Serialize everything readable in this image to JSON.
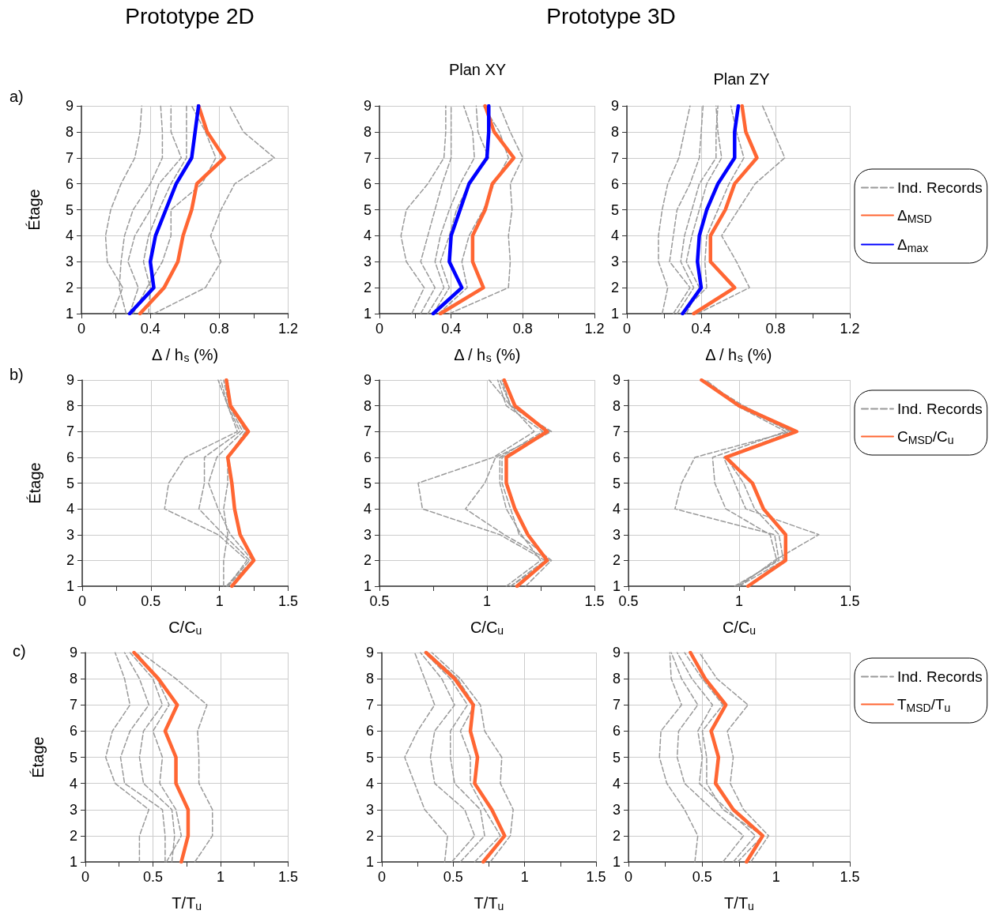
{
  "chart_data": [
    {
      "type": "line",
      "title": "Prototype 2D",
      "annotations": [
        "a)"
      ],
      "xlabel": "Δ / h$_{s}$ (%)",
      "ylabel": "Étage",
      "xlim": [
        0,
        1.2
      ],
      "xticks": [
        0,
        0.4,
        0.8,
        1.2
      ],
      "ylim": [
        1,
        9
      ],
      "yticks": [
        1,
        2,
        3,
        4,
        5,
        6,
        7,
        8,
        9
      ],
      "grid": true,
      "marker": "none",
      "series": [
        {
          "color": "#999999",
          "line_style": "dashed",
          "x": [
            0.42,
            0.72,
            0.81,
            0.75,
            0.81,
            0.89,
            1.12,
            0.94,
            0.86
          ],
          "values": [
            1,
            2,
            3,
            4,
            5,
            6,
            7,
            8,
            9
          ]
        },
        {
          "color": "#999999",
          "line_style": "dashed",
          "x": [
            0.18,
            0.24,
            0.15,
            0.14,
            0.17,
            0.23,
            0.31,
            0.34,
            0.35
          ],
          "values": [
            1,
            2,
            3,
            4,
            5,
            6,
            7,
            8,
            9
          ]
        },
        {
          "color": "#999999",
          "line_style": "dashed",
          "x": [
            0.26,
            0.22,
            0.23,
            0.25,
            0.3,
            0.4,
            0.47,
            0.47,
            0.46
          ],
          "values": [
            1,
            2,
            3,
            4,
            5,
            6,
            7,
            8,
            9
          ]
        },
        {
          "color": "#999999",
          "line_style": "dashed",
          "x": [
            0.3,
            0.38,
            0.47,
            0.52,
            0.52,
            0.7,
            0.78,
            0.72,
            0.64
          ],
          "values": [
            1,
            2,
            3,
            4,
            5,
            6,
            7,
            8,
            9
          ]
        },
        {
          "color": "#999999",
          "line_style": "dashed",
          "x": [
            0.28,
            0.33,
            0.27,
            0.31,
            0.4,
            0.45,
            0.58,
            0.52,
            0.52
          ],
          "values": [
            1,
            2,
            3,
            4,
            5,
            6,
            7,
            8,
            9
          ]
        },
        {
          "color": "#999999",
          "line_style": "dashed",
          "x": [
            0.39,
            0.4,
            0.36,
            0.39,
            0.45,
            0.52,
            0.61,
            0.61,
            0.61
          ],
          "values": [
            1,
            2,
            3,
            4,
            5,
            6,
            7,
            8,
            9
          ]
        },
        {
          "color": "#ff6633",
          "line_style": "solid",
          "x": [
            0.34,
            0.48,
            0.56,
            0.59,
            0.64,
            0.67,
            0.83,
            0.73,
            0.68
          ],
          "values": [
            1,
            2,
            3,
            4,
            5,
            6,
            7,
            8,
            9
          ]
        },
        {
          "color": "#0000ff",
          "line_style": "solid",
          "x": [
            0.28,
            0.42,
            0.4,
            0.43,
            0.49,
            0.55,
            0.64,
            0.66,
            0.68
          ],
          "values": [
            1,
            2,
            3,
            4,
            5,
            6,
            7,
            8,
            9
          ]
        }
      ]
    },
    {
      "type": "line",
      "title": "Prototype 3D",
      "subtitle": "Plan XY",
      "xlabel": "Δ / h$_{s}$ (%)",
      "xlim": [
        0,
        1.2
      ],
      "xticks": [
        0,
        0.4,
        0.8,
        1.2
      ],
      "ylim": [
        1,
        9
      ],
      "yticks": [
        1,
        2,
        3,
        4,
        5,
        6,
        7,
        8,
        9
      ],
      "grid": true,
      "marker": "none",
      "series": [
        {
          "color": "#999999",
          "line_style": "dashed",
          "x": [
            0.39,
            0.72,
            0.73,
            0.72,
            0.74,
            0.73,
            0.8,
            0.73,
            0.67
          ],
          "values": [
            1,
            2,
            3,
            4,
            5,
            6,
            7,
            8,
            9
          ]
        },
        {
          "color": "#999999",
          "line_style": "dashed",
          "x": [
            0.18,
            0.25,
            0.15,
            0.12,
            0.15,
            0.27,
            0.36,
            0.37,
            0.37
          ],
          "values": [
            1,
            2,
            3,
            4,
            5,
            6,
            7,
            8,
            9
          ]
        },
        {
          "color": "#999999",
          "line_style": "dashed",
          "x": [
            0.23,
            0.31,
            0.23,
            0.27,
            0.31,
            0.35,
            0.4,
            0.4,
            0.4
          ],
          "values": [
            1,
            2,
            3,
            4,
            5,
            6,
            7,
            8,
            9
          ]
        },
        {
          "color": "#999999",
          "line_style": "dashed",
          "x": [
            0.27,
            0.36,
            0.31,
            0.34,
            0.39,
            0.45,
            0.53,
            0.52,
            0.47
          ],
          "values": [
            1,
            2,
            3,
            4,
            5,
            6,
            7,
            8,
            9
          ]
        },
        {
          "color": "#999999",
          "line_style": "dashed",
          "x": [
            0.33,
            0.49,
            0.46,
            0.5,
            0.58,
            0.64,
            0.72,
            0.67,
            0.58
          ],
          "values": [
            1,
            2,
            3,
            4,
            5,
            6,
            7,
            8,
            9
          ]
        },
        {
          "color": "#999999",
          "line_style": "dashed",
          "x": [
            0.3,
            0.39,
            0.34,
            0.39,
            0.43,
            0.5,
            0.61,
            0.55,
            0.54
          ],
          "values": [
            1,
            2,
            3,
            4,
            5,
            6,
            7,
            8,
            9
          ]
        },
        {
          "color": "#ff6633",
          "line_style": "solid",
          "x": [
            0.34,
            0.58,
            0.52,
            0.52,
            0.59,
            0.63,
            0.75,
            0.64,
            0.59
          ],
          "values": [
            1,
            2,
            3,
            4,
            5,
            6,
            7,
            8,
            9
          ]
        },
        {
          "color": "#0000ff",
          "line_style": "solid",
          "x": [
            0.3,
            0.46,
            0.39,
            0.4,
            0.45,
            0.5,
            0.6,
            0.61,
            0.61
          ],
          "values": [
            1,
            2,
            3,
            4,
            5,
            6,
            7,
            8,
            9
          ]
        }
      ]
    },
    {
      "type": "line",
      "title": "Plan ZY",
      "xlabel": "Δ / h$_{s}$ (%)",
      "xlim": [
        0,
        1.2
      ],
      "xticks": [
        0,
        0.4,
        0.8,
        1.2
      ],
      "ylim": [
        1,
        9
      ],
      "yticks": [
        1,
        2,
        3,
        4,
        5,
        6,
        7,
        8,
        9
      ],
      "grid": true,
      "marker": "none",
      "legend": "right",
      "series": [
        {
          "name": "Ind. Records",
          "color": "#999999",
          "line_style": "dashed",
          "x": [
            0.38,
            0.66,
            0.59,
            0.51,
            0.6,
            0.69,
            0.85,
            0.79,
            0.73
          ],
          "values": [
            1,
            2,
            3,
            4,
            5,
            6,
            7,
            8,
            9
          ]
        },
        {
          "color": "#999999",
          "line_style": "dashed",
          "x": [
            0.19,
            0.22,
            0.17,
            0.17,
            0.19,
            0.22,
            0.28,
            0.31,
            0.34
          ],
          "values": [
            1,
            2,
            3,
            4,
            5,
            6,
            7,
            8,
            9
          ]
        },
        {
          "color": "#999999",
          "line_style": "dashed",
          "x": [
            0.25,
            0.34,
            0.23,
            0.25,
            0.27,
            0.34,
            0.39,
            0.4,
            0.41
          ],
          "values": [
            1,
            2,
            3,
            4,
            5,
            6,
            7,
            8,
            9
          ]
        },
        {
          "color": "#999999",
          "line_style": "dashed",
          "x": [
            0.32,
            0.39,
            0.32,
            0.35,
            0.39,
            0.43,
            0.51,
            0.49,
            0.48
          ],
          "values": [
            1,
            2,
            3,
            4,
            5,
            6,
            7,
            8,
            9
          ]
        },
        {
          "color": "#999999",
          "line_style": "dashed",
          "x": [
            0.29,
            0.43,
            0.42,
            0.43,
            0.49,
            0.55,
            0.63,
            0.59,
            0.56
          ],
          "values": [
            1,
            2,
            3,
            4,
            5,
            6,
            7,
            8,
            9
          ]
        },
        {
          "color": "#999999",
          "line_style": "dashed",
          "x": [
            0.27,
            0.36,
            0.29,
            0.31,
            0.35,
            0.39,
            0.48,
            0.48,
            0.49
          ],
          "values": [
            1,
            2,
            3,
            4,
            5,
            6,
            7,
            8,
            9
          ]
        },
        {
          "name": "Δ$_{MSD}$",
          "color": "#ff6633",
          "line_style": "solid",
          "x": [
            0.36,
            0.58,
            0.45,
            0.45,
            0.53,
            0.58,
            0.7,
            0.64,
            0.62
          ],
          "values": [
            1,
            2,
            3,
            4,
            5,
            6,
            7,
            8,
            9
          ]
        },
        {
          "name": "Δ$_{max}$",
          "color": "#0000ff",
          "line_style": "solid",
          "x": [
            0.3,
            0.4,
            0.38,
            0.39,
            0.43,
            0.49,
            0.58,
            0.58,
            0.6
          ],
          "values": [
            1,
            2,
            3,
            4,
            5,
            6,
            7,
            8,
            9
          ]
        }
      ]
    },
    {
      "type": "line",
      "annotations": [
        "b)"
      ],
      "xlabel": "C/C$_{u}$",
      "ylabel": "Étage",
      "xlim": [
        0,
        1.5
      ],
      "xticks": [
        0,
        0.5,
        1,
        1.5
      ],
      "ylim": [
        1,
        9
      ],
      "yticks": [
        1,
        2,
        3,
        4,
        5,
        6,
        7,
        8,
        9
      ],
      "grid": true,
      "marker": "none",
      "series": [
        {
          "color": "#999999",
          "line_style": "dashed",
          "x": [
            1.06,
            1.2,
            0.99,
            0.6,
            0.63,
            0.75,
            1.13,
            1.06,
            1.01
          ],
          "values": [
            1,
            2,
            3,
            4,
            5,
            6,
            7,
            8,
            9
          ]
        },
        {
          "color": "#999999",
          "line_style": "dashed",
          "x": [
            1.05,
            1.22,
            1.03,
            0.85,
            0.89,
            0.89,
            1.15,
            1.06,
            0.99
          ],
          "values": [
            1,
            2,
            3,
            4,
            5,
            6,
            7,
            8,
            9
          ]
        },
        {
          "color": "#999999",
          "line_style": "dashed",
          "x": [
            1.06,
            1.24,
            1.08,
            0.99,
            0.92,
            0.98,
            1.17,
            1.07,
            1.03
          ],
          "values": [
            1,
            2,
            3,
            4,
            5,
            6,
            7,
            8,
            9
          ]
        },
        {
          "color": "#999999",
          "line_style": "dashed",
          "x": [
            1.03,
            1.03,
            1.06,
            1.03,
            1.06,
            1.06,
            1.19,
            1.08,
            1.06
          ],
          "values": [
            1,
            2,
            3,
            4,
            5,
            6,
            7,
            8,
            9
          ]
        },
        {
          "color": "#ff6633",
          "line_style": "solid",
          "x": [
            1.09,
            1.25,
            1.15,
            1.11,
            1.09,
            1.06,
            1.21,
            1.08,
            1.05
          ],
          "values": [
            1,
            2,
            3,
            4,
            5,
            6,
            7,
            8,
            9
          ]
        }
      ]
    },
    {
      "type": "line",
      "xlabel": "C/C$_{u}$",
      "xlim": [
        0.5,
        1.5
      ],
      "xticks": [
        0.5,
        1,
        1.5
      ],
      "ylim": [
        1,
        9
      ],
      "yticks": [
        1,
        2,
        3,
        4,
        5,
        6,
        7,
        8,
        9
      ],
      "grid": true,
      "marker": "none",
      "series": [
        {
          "color": "#999999",
          "line_style": "dashed",
          "x": [
            1.11,
            1.27,
            1.06,
            0.7,
            0.68,
            1.03,
            1.22,
            1.11,
            1.07
          ],
          "values": [
            1,
            2,
            3,
            4,
            5,
            6,
            7,
            8,
            9
          ]
        },
        {
          "color": "#999999",
          "line_style": "dashed",
          "x": [
            1.11,
            1.29,
            1.08,
            0.9,
            0.99,
            1.04,
            1.29,
            1.11,
            1.01
          ],
          "values": [
            1,
            2,
            3,
            4,
            5,
            6,
            7,
            8,
            9
          ]
        },
        {
          "color": "#999999",
          "line_style": "dashed",
          "x": [
            1.18,
            1.3,
            1.15,
            1.11,
            1.07,
            1.07,
            1.3,
            1.11,
            1.06
          ],
          "values": [
            1,
            2,
            3,
            4,
            5,
            6,
            7,
            8,
            9
          ]
        },
        {
          "color": "#999999",
          "line_style": "dashed",
          "x": [
            1.09,
            1.25,
            1.16,
            1.09,
            1.06,
            1.06,
            1.26,
            1.09,
            1.05
          ],
          "values": [
            1,
            2,
            3,
            4,
            5,
            6,
            7,
            8,
            9
          ]
        },
        {
          "color": "#ff6633",
          "line_style": "solid",
          "x": [
            1.14,
            1.28,
            1.19,
            1.13,
            1.09,
            1.09,
            1.28,
            1.13,
            1.08
          ],
          "values": [
            1,
            2,
            3,
            4,
            5,
            6,
            7,
            8,
            9
          ]
        }
      ]
    },
    {
      "type": "line",
      "xlabel": "C/C$_{u}$",
      "xlim": [
        0.5,
        1.5
      ],
      "xticks": [
        0.5,
        1,
        1.5
      ],
      "ylim": [
        1,
        9
      ],
      "yticks": [
        1,
        2,
        3,
        4,
        5,
        6,
        7,
        8,
        9
      ],
      "grid": true,
      "marker": "none",
      "legend": "right",
      "series": [
        {
          "name": "Ind. Records",
          "color": "#999999",
          "line_style": "dashed",
          "x": [
            0.98,
            1.18,
            1.16,
            0.71,
            0.74,
            0.8,
            1.23,
            1,
            0.85
          ],
          "values": [
            1,
            2,
            3,
            4,
            5,
            6,
            7,
            8,
            9
          ]
        },
        {
          "color": "#999999",
          "line_style": "dashed",
          "x": [
            1,
            1.16,
            1.36,
            1.03,
            0.98,
            0.93,
            1.24,
            1,
            0.84
          ],
          "values": [
            1,
            2,
            3,
            4,
            5,
            6,
            7,
            8,
            9
          ]
        },
        {
          "color": "#999999",
          "line_style": "dashed",
          "x": [
            0.99,
            1.17,
            1.14,
            0.94,
            0.89,
            0.88,
            1.21,
            0.99,
            0.84
          ],
          "values": [
            1,
            2,
            3,
            4,
            5,
            6,
            7,
            8,
            9
          ]
        },
        {
          "color": "#999999",
          "line_style": "dashed",
          "x": [
            1,
            1.2,
            1.18,
            1.07,
            1.02,
            0.94,
            1.25,
            1.02,
            0.83
          ],
          "values": [
            1,
            2,
            3,
            4,
            5,
            6,
            7,
            8,
            9
          ]
        },
        {
          "name": "C$_{MSD}$/C$_{u}$",
          "color": "#ff6633",
          "line_style": "solid",
          "x": [
            1.04,
            1.21,
            1.21,
            1.11,
            1.06,
            0.94,
            1.26,
            1,
            0.83
          ],
          "values": [
            1,
            2,
            3,
            4,
            5,
            6,
            7,
            8,
            9
          ]
        }
      ]
    },
    {
      "type": "line",
      "annotations": [
        "c)"
      ],
      "xlabel": "T/T$_{u}$",
      "ylabel": "Étage",
      "xlim": [
        0,
        1.5
      ],
      "xticks": [
        0,
        0.5,
        1,
        1.5
      ],
      "ylim": [
        1,
        9
      ],
      "yticks": [
        1,
        2,
        3,
        4,
        5,
        6,
        7,
        8,
        9
      ],
      "grid": true,
      "marker": "none",
      "series": [
        {
          "color": "#999999",
          "line_style": "dashed",
          "x": [
            0.81,
            0.94,
            0.94,
            0.84,
            0.84,
            0.83,
            0.9,
            0.67,
            0.41
          ],
          "values": [
            1,
            2,
            3,
            4,
            5,
            6,
            7,
            8,
            9
          ]
        },
        {
          "color": "#999999",
          "line_style": "dashed",
          "x": [
            0.4,
            0.4,
            0.47,
            0.22,
            0.15,
            0.2,
            0.33,
            0.29,
            0.22
          ],
          "values": [
            1,
            2,
            3,
            4,
            5,
            6,
            7,
            8,
            9
          ]
        },
        {
          "color": "#999999",
          "line_style": "dashed",
          "x": [
            0.59,
            0.59,
            0.57,
            0.29,
            0.26,
            0.33,
            0.47,
            0.4,
            0.29
          ],
          "values": [
            1,
            2,
            3,
            4,
            5,
            6,
            7,
            8,
            9
          ]
        },
        {
          "color": "#999999",
          "line_style": "dashed",
          "x": [
            0.64,
            0.66,
            0.64,
            0.43,
            0.4,
            0.43,
            0.57,
            0.5,
            0.33
          ],
          "values": [
            1,
            2,
            3,
            4,
            5,
            6,
            7,
            8,
            9
          ]
        },
        {
          "color": "#999999",
          "line_style": "dashed",
          "x": [
            0.6,
            0.71,
            0.67,
            0.55,
            0.57,
            0.5,
            0.62,
            0.53,
            0.38
          ],
          "values": [
            1,
            2,
            3,
            4,
            5,
            6,
            7,
            8,
            9
          ]
        },
        {
          "color": "#ff6633",
          "line_style": "solid",
          "x": [
            0.71,
            0.76,
            0.76,
            0.67,
            0.67,
            0.59,
            0.68,
            0.54,
            0.36
          ],
          "values": [
            1,
            2,
            3,
            4,
            5,
            6,
            7,
            8,
            9
          ]
        }
      ]
    },
    {
      "type": "line",
      "xlabel": "T/T$_{u}$",
      "xlim": [
        0,
        1.5
      ],
      "xticks": [
        0,
        0.5,
        1,
        1.5
      ],
      "ylim": [
        1,
        9
      ],
      "yticks": [
        1,
        2,
        3,
        4,
        5,
        6,
        7,
        8,
        9
      ],
      "grid": true,
      "marker": "none",
      "series": [
        {
          "color": "#999999",
          "line_style": "dashed",
          "x": [
            0.76,
            0.9,
            0.92,
            0.83,
            0.84,
            0.72,
            0.69,
            0.55,
            0.35
          ],
          "values": [
            1,
            2,
            3,
            4,
            5,
            6,
            7,
            8,
            9
          ]
        },
        {
          "color": "#999999",
          "line_style": "dashed",
          "x": [
            0.44,
            0.46,
            0.3,
            0.23,
            0.16,
            0.25,
            0.37,
            0.3,
            0.23
          ],
          "values": [
            1,
            2,
            3,
            4,
            5,
            6,
            7,
            8,
            9
          ]
        },
        {
          "color": "#999999",
          "line_style": "dashed",
          "x": [
            0.49,
            0.65,
            0.58,
            0.37,
            0.34,
            0.37,
            0.51,
            0.42,
            0.27
          ],
          "values": [
            1,
            2,
            3,
            4,
            5,
            6,
            7,
            8,
            9
          ]
        },
        {
          "color": "#999999",
          "line_style": "dashed",
          "x": [
            0.55,
            0.72,
            0.69,
            0.51,
            0.48,
            0.48,
            0.6,
            0.48,
            0.3
          ],
          "values": [
            1,
            2,
            3,
            4,
            5,
            6,
            7,
            8,
            9
          ]
        },
        {
          "color": "#999999",
          "line_style": "dashed",
          "x": [
            0.65,
            0.83,
            0.72,
            0.62,
            0.62,
            0.55,
            0.65,
            0.53,
            0.32
          ],
          "values": [
            1,
            2,
            3,
            4,
            5,
            6,
            7,
            8,
            9
          ]
        },
        {
          "color": "#ff6633",
          "line_style": "solid",
          "x": [
            0.71,
            0.86,
            0.77,
            0.65,
            0.67,
            0.62,
            0.64,
            0.51,
            0.31
          ],
          "values": [
            1,
            2,
            3,
            4,
            5,
            6,
            7,
            8,
            9
          ]
        }
      ]
    },
    {
      "type": "line",
      "xlabel": "T/T$_{u}$",
      "xlim": [
        0,
        1.5
      ],
      "xticks": [
        0,
        0.5,
        1,
        1.5
      ],
      "ylim": [
        1,
        9
      ],
      "yticks": [
        1,
        2,
        3,
        4,
        5,
        6,
        7,
        8,
        9
      ],
      "grid": true,
      "marker": "none",
      "legend": "right",
      "series": [
        {
          "name": "Ind. Records",
          "color": "#999999",
          "line_style": "dashed",
          "x": [
            0.83,
            0.95,
            0.78,
            0.69,
            0.71,
            0.67,
            0.81,
            0.6,
            0.48
          ],
          "values": [
            1,
            2,
            3,
            4,
            5,
            6,
            7,
            8,
            9
          ]
        },
        {
          "color": "#999999",
          "line_style": "dashed",
          "x": [
            0.45,
            0.47,
            0.38,
            0.26,
            0.21,
            0.22,
            0.36,
            0.29,
            0.28
          ],
          "values": [
            1,
            2,
            3,
            4,
            5,
            6,
            7,
            8,
            9
          ]
        },
        {
          "color": "#999999",
          "line_style": "dashed",
          "x": [
            0.64,
            0.78,
            0.57,
            0.38,
            0.33,
            0.34,
            0.47,
            0.36,
            0.29
          ],
          "values": [
            1,
            2,
            3,
            4,
            5,
            6,
            7,
            8,
            9
          ]
        },
        {
          "color": "#999999",
          "line_style": "dashed",
          "x": [
            0.71,
            0.86,
            0.67,
            0.48,
            0.5,
            0.47,
            0.57,
            0.43,
            0.33
          ],
          "values": [
            1,
            2,
            3,
            4,
            5,
            6,
            7,
            8,
            9
          ]
        },
        {
          "color": "#999999",
          "line_style": "dashed",
          "x": [
            0.74,
            0.91,
            0.64,
            0.53,
            0.53,
            0.5,
            0.64,
            0.5,
            0.38
          ],
          "values": [
            1,
            2,
            3,
            4,
            5,
            6,
            7,
            8,
            9
          ]
        },
        {
          "name": "T$_{MSD}$/T$_{u}$",
          "color": "#ff6633",
          "line_style": "solid",
          "x": [
            0.8,
            0.91,
            0.71,
            0.59,
            0.61,
            0.56,
            0.66,
            0.52,
            0.42
          ],
          "values": [
            1,
            2,
            3,
            4,
            5,
            6,
            7,
            8,
            9
          ]
        }
      ]
    }
  ]
}
